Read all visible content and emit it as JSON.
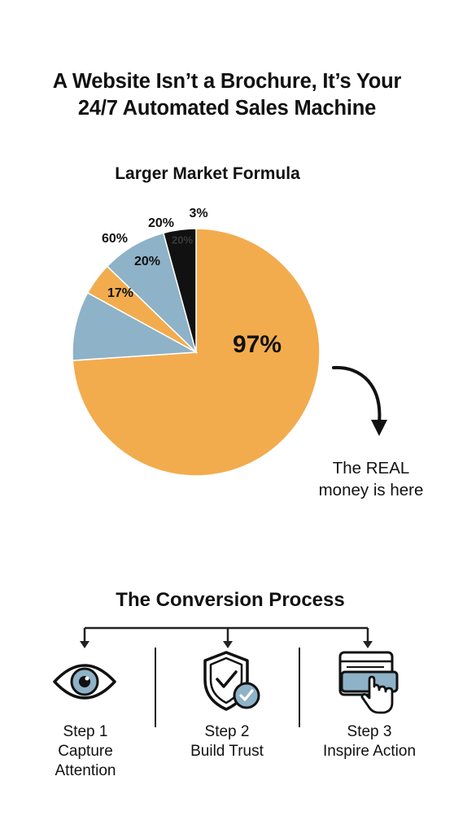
{
  "header": {
    "title_line1": "A Website Isn’t a Brochure, It’s Your",
    "title_line2": "24/7 Automated Sales Machine"
  },
  "chart_data": {
    "type": "pie",
    "title": "Larger Market Formula",
    "slices": [
      {
        "label": "97%",
        "value": 69.5,
        "color": "#F2AC4E"
      },
      {
        "label": "17%",
        "value": 8.5,
        "color": "#8EB2C7"
      },
      {
        "label": "60%",
        "value": 4.0,
        "color": "#F2AC4E"
      },
      {
        "label": "20%",
        "value": 8.0,
        "color": "#8EB2C7"
      },
      {
        "label": "20%",
        "value": 4.0,
        "color": "#111111"
      },
      {
        "label": "3%",
        "value": 0.0,
        "color": "#111111"
      }
    ],
    "inner_text": "20%",
    "slice_colors": {
      "orange": "#F2AC4E",
      "blue": "#8EB2C7",
      "black": "#111111"
    }
  },
  "annotation": {
    "line1": "The REAL",
    "line2": "money is here"
  },
  "process": {
    "title": "The Conversion Process",
    "steps": [
      {
        "icon": "eye-icon",
        "line1": "Step 1",
        "line2": "Capture",
        "line3": "Attention"
      },
      {
        "icon": "shield-check-icon",
        "line1": "Step 2",
        "line2": "Build Trust"
      },
      {
        "icon": "click-card-icon",
        "line1": "Step 3",
        "line2": "Inspire Action"
      }
    ]
  }
}
